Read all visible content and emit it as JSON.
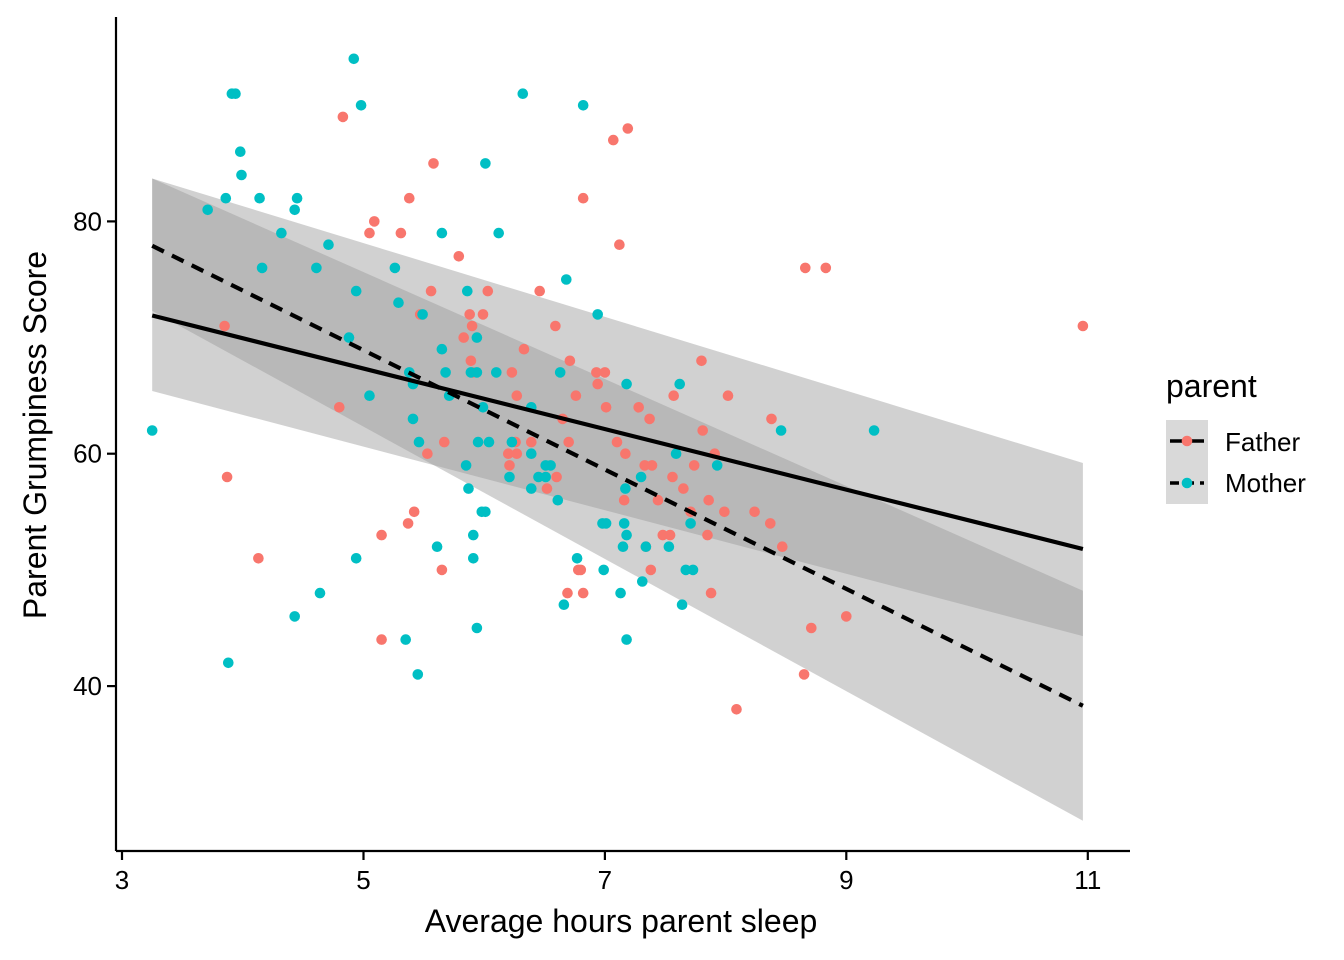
{
  "chart_data": {
    "type": "scatter",
    "title": "",
    "xlabel": "Average hours parent sleep",
    "ylabel": "Parent Grumpiness Score",
    "xlim": [
      2.95,
      11.35
    ],
    "ylim": [
      25.8,
      97.6
    ],
    "x_ticks": [
      3,
      5,
      7,
      9,
      11
    ],
    "x_tick_labels": [
      "3",
      "5",
      "7",
      "9",
      "11"
    ],
    "y_ticks": [
      40,
      60,
      80
    ],
    "y_tick_labels": [
      "40",
      "60",
      "80"
    ],
    "legend": {
      "title": "parent",
      "position": "right",
      "entries": [
        {
          "label": "Father",
          "color": "#F8766D",
          "line": "solid"
        },
        {
          "label": "Mother",
          "color": "#00BFC4",
          "line": "dashed"
        }
      ]
    },
    "colors": {
      "Father": "#F8766D",
      "Mother": "#00BFC4",
      "ribbon": "#999999",
      "line": "#000000"
    },
    "series": [
      {
        "name": "Father",
        "color": "#F8766D",
        "points": [
          [
            4.83,
            89
          ],
          [
            7.07,
            87
          ],
          [
            7.19,
            88
          ],
          [
            5.58,
            85
          ],
          [
            5.38,
            82
          ],
          [
            6.82,
            82
          ],
          [
            5.09,
            80
          ],
          [
            5.05,
            79
          ],
          [
            5.31,
            79
          ],
          [
            7.12,
            78
          ],
          [
            5.79,
            77
          ],
          [
            8.66,
            76
          ],
          [
            8.83,
            76
          ],
          [
            5.56,
            74
          ],
          [
            6.03,
            74
          ],
          [
            6.46,
            74
          ],
          [
            5.47,
            72
          ],
          [
            5.88,
            72
          ],
          [
            5.99,
            72
          ],
          [
            10.96,
            71
          ],
          [
            3.85,
            71
          ],
          [
            5.9,
            71
          ],
          [
            6.59,
            71
          ],
          [
            5.83,
            70
          ],
          [
            6.33,
            69
          ],
          [
            5.89,
            68
          ],
          [
            6.71,
            68
          ],
          [
            7.8,
            68
          ],
          [
            5.91,
            67
          ],
          [
            6.23,
            67
          ],
          [
            6.93,
            67
          ],
          [
            7.0,
            67
          ],
          [
            6.94,
            66
          ],
          [
            6.76,
            65
          ],
          [
            7.57,
            65
          ],
          [
            8.02,
            65
          ],
          [
            6.27,
            65
          ],
          [
            4.8,
            64
          ],
          [
            7.01,
            64
          ],
          [
            7.28,
            64
          ],
          [
            6.65,
            63
          ],
          [
            7.37,
            63
          ],
          [
            8.38,
            63
          ],
          [
            7.81,
            62
          ],
          [
            7.1,
            61
          ],
          [
            5.67,
            61
          ],
          [
            6.39,
            61
          ],
          [
            6.7,
            61
          ],
          [
            6.26,
            61
          ],
          [
            6.2,
            60
          ],
          [
            6.27,
            60
          ],
          [
            5.53,
            60
          ],
          [
            7.17,
            60
          ],
          [
            7.91,
            60
          ],
          [
            6.21,
            59
          ],
          [
            7.33,
            59
          ],
          [
            7.39,
            59
          ],
          [
            7.74,
            59
          ],
          [
            3.87,
            58
          ],
          [
            6.6,
            58
          ],
          [
            7.56,
            58
          ],
          [
            6.52,
            57
          ],
          [
            7.65,
            57
          ],
          [
            7.16,
            56
          ],
          [
            7.44,
            56
          ],
          [
            7.86,
            56
          ],
          [
            5.42,
            55
          ],
          [
            7.99,
            55
          ],
          [
            7.71,
            55
          ],
          [
            8.24,
            55
          ],
          [
            5.37,
            54
          ],
          [
            8.37,
            54
          ],
          [
            5.15,
            53
          ],
          [
            7.48,
            53
          ],
          [
            7.54,
            53
          ],
          [
            7.85,
            53
          ],
          [
            8.47,
            52
          ],
          [
            7.34,
            52
          ],
          [
            4.13,
            51
          ],
          [
            6.78,
            50
          ],
          [
            6.8,
            50
          ],
          [
            5.65,
            50
          ],
          [
            7.38,
            50
          ],
          [
            6.69,
            48
          ],
          [
            6.82,
            48
          ],
          [
            7.88,
            48
          ],
          [
            9.0,
            46
          ],
          [
            8.71,
            45
          ],
          [
            5.15,
            44
          ],
          [
            8.65,
            41
          ],
          [
            8.09,
            38
          ]
        ]
      },
      {
        "name": "Mother",
        "color": "#00BFC4",
        "points": [
          [
            4.92,
            94
          ],
          [
            3.91,
            91
          ],
          [
            3.94,
            91
          ],
          [
            6.32,
            91
          ],
          [
            4.98,
            90
          ],
          [
            6.82,
            90
          ],
          [
            3.98,
            86
          ],
          [
            6.01,
            85
          ],
          [
            3.99,
            84
          ],
          [
            3.86,
            82
          ],
          [
            4.14,
            82
          ],
          [
            4.45,
            82
          ],
          [
            3.71,
            81
          ],
          [
            4.43,
            81
          ],
          [
            4.32,
            79
          ],
          [
            5.65,
            79
          ],
          [
            6.12,
            79
          ],
          [
            4.71,
            78
          ],
          [
            4.16,
            76
          ],
          [
            4.61,
            76
          ],
          [
            5.26,
            76
          ],
          [
            6.68,
            75
          ],
          [
            4.94,
            74
          ],
          [
            5.86,
            74
          ],
          [
            5.29,
            73
          ],
          [
            5.49,
            72
          ],
          [
            6.94,
            72
          ],
          [
            4.88,
            70
          ],
          [
            5.94,
            70
          ],
          [
            5.65,
            69
          ],
          [
            5.89,
            67
          ],
          [
            5.94,
            67
          ],
          [
            6.1,
            67
          ],
          [
            5.38,
            67
          ],
          [
            5.68,
            67
          ],
          [
            6.63,
            67
          ],
          [
            7.18,
            66
          ],
          [
            7.62,
            66
          ],
          [
            5.41,
            66
          ],
          [
            5.05,
            65
          ],
          [
            5.71,
            65
          ],
          [
            5.99,
            64
          ],
          [
            6.39,
            64
          ],
          [
            5.41,
            63
          ],
          [
            8.46,
            62
          ],
          [
            9.23,
            62
          ],
          [
            3.25,
            62
          ],
          [
            5.46,
            61
          ],
          [
            5.95,
            61
          ],
          [
            6.04,
            61
          ],
          [
            6.23,
            61
          ],
          [
            6.39,
            60
          ],
          [
            7.59,
            60
          ],
          [
            5.85,
            59
          ],
          [
            6.51,
            59
          ],
          [
            6.55,
            59
          ],
          [
            7.93,
            59
          ],
          [
            6.21,
            58
          ],
          [
            6.45,
            58
          ],
          [
            6.51,
            58
          ],
          [
            7.3,
            58
          ],
          [
            5.87,
            57
          ],
          [
            6.39,
            57
          ],
          [
            7.17,
            57
          ],
          [
            6.61,
            56
          ],
          [
            5.98,
            55
          ],
          [
            6.01,
            55
          ],
          [
            6.98,
            54
          ],
          [
            7.01,
            54
          ],
          [
            7.16,
            54
          ],
          [
            7.71,
            54
          ],
          [
            5.91,
            53
          ],
          [
            7.18,
            53
          ],
          [
            5.61,
            52
          ],
          [
            7.15,
            52
          ],
          [
            7.34,
            52
          ],
          [
            7.53,
            52
          ],
          [
            4.94,
            51
          ],
          [
            5.91,
            51
          ],
          [
            6.77,
            51
          ],
          [
            6.99,
            50
          ],
          [
            7.67,
            50
          ],
          [
            7.73,
            50
          ],
          [
            7.31,
            49
          ],
          [
            4.64,
            48
          ],
          [
            7.13,
            48
          ],
          [
            6.66,
            47
          ],
          [
            7.64,
            47
          ],
          [
            4.43,
            46
          ],
          [
            5.94,
            45
          ],
          [
            5.35,
            44
          ],
          [
            7.18,
            44
          ],
          [
            3.88,
            42
          ],
          [
            5.45,
            41
          ]
        ]
      }
    ],
    "fits": [
      {
        "name": "Father",
        "line": "solid",
        "x": [
          3.25,
          10.96
        ],
        "y": [
          71.9,
          51.8
        ],
        "band_lower": [
          65.4,
          44.3
        ],
        "band_upper": [
          83.7,
          59.2
        ]
      },
      {
        "name": "Mother",
        "line": "dashed",
        "x": [
          3.25,
          10.96
        ],
        "y": [
          77.9,
          38.3
        ],
        "band_lower": [
          72.3,
          28.4
        ],
        "band_upper": [
          83.7,
          48.2
        ]
      }
    ]
  }
}
